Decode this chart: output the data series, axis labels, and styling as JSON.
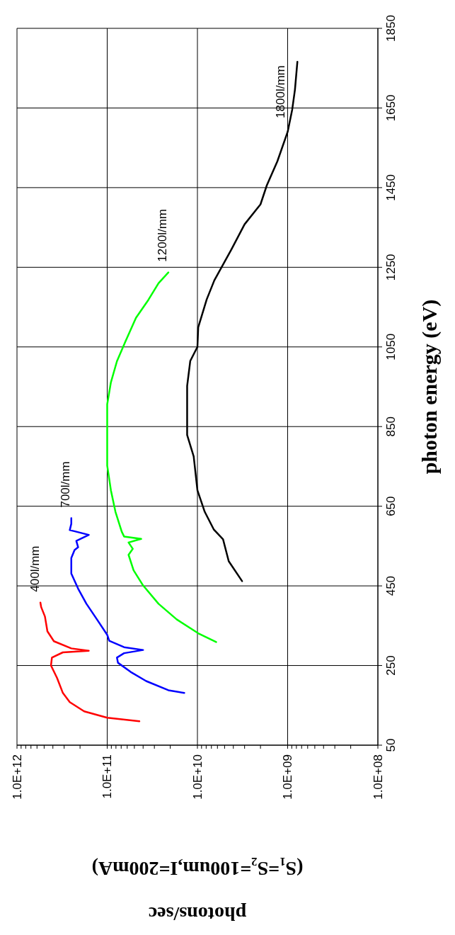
{
  "chart_data": {
    "type": "line",
    "xlabel": "photons/sec\n(S₁=S₂=100um,I=200mA)",
    "ylabel": "photon energy (eV)",
    "log": "x",
    "grid": true,
    "marker": "none",
    "line_style": "solid",
    "ylim": [
      50,
      1850
    ],
    "yticks": [
      50,
      250,
      450,
      650,
      850,
      1050,
      1250,
      1450,
      1650,
      1850
    ],
    "xlim": [
      1000000000000,
      100000000
    ],
    "xticks": [
      {
        "value": 100000000,
        "label": "1.0E+08"
      },
      {
        "value": 200000000,
        "label": null
      },
      {
        "value": 300000000,
        "label": null
      },
      {
        "value": 400000000,
        "label": null
      },
      {
        "value": 500000000,
        "label": null
      },
      {
        "value": 600000000,
        "label": null
      },
      {
        "value": 700000000,
        "label": null
      },
      {
        "value": 800000000,
        "label": null
      },
      {
        "value": 900000000,
        "label": null
      },
      {
        "value": 1000000000,
        "label": "1.0E+09"
      },
      {
        "value": 2000000000,
        "label": null
      },
      {
        "value": 3000000000,
        "label": null
      },
      {
        "value": 4000000000,
        "label": null
      },
      {
        "value": 5000000000,
        "label": null
      },
      {
        "value": 6000000000,
        "label": null
      },
      {
        "value": 7000000000,
        "label": null
      },
      {
        "value": 8000000000,
        "label": null
      },
      {
        "value": 9000000000,
        "label": null
      },
      {
        "value": 10000000000,
        "label": "1.0E+10"
      },
      {
        "value": 20000000000,
        "label": null
      },
      {
        "value": 30000000000,
        "label": null
      },
      {
        "value": 40000000000,
        "label": null
      },
      {
        "value": 50000000000,
        "label": null
      },
      {
        "value": 60000000000,
        "label": null
      },
      {
        "value": 70000000000,
        "label": null
      },
      {
        "value": 80000000000,
        "label": null
      },
      {
        "value": 90000000000,
        "label": null
      },
      {
        "value": 100000000000,
        "label": "1.0E+11"
      },
      {
        "value": 200000000000,
        "label": null
      },
      {
        "value": 300000000000,
        "label": null
      },
      {
        "value": 400000000000,
        "label": null
      },
      {
        "value": 500000000000,
        "label": null
      },
      {
        "value": 600000000000,
        "label": null
      },
      {
        "value": 700000000000,
        "label": null
      },
      {
        "value": 800000000000,
        "label": null
      },
      {
        "value": 900000000000,
        "label": null
      },
      {
        "value": 1000000000000,
        "label": "1.0E+12"
      }
    ],
    "series": [
      {
        "name": "400l/mm",
        "color": "#ff0000",
        "values": [
          110,
          119,
          135,
          158,
          181,
          219,
          250,
          270,
          283,
          287,
          293,
          311,
          336,
          373,
          397,
          408
        ],
        "x": [
          44000000000.0,
          100000000000.0,
          180000000000.0,
          260000000000.0,
          310000000000.0,
          360000000000.0,
          420000000000.0,
          410000000000.0,
          310000000000.0,
          160000000000.0,
          250000000000.0,
          390000000000.0,
          460000000000.0,
          490000000000.0,
          540000000000.0,
          550000000000.0
        ]
      },
      {
        "name": "700l/mm",
        "color": "#0000ff",
        "values": [
          181,
          188,
          211,
          234,
          257,
          270,
          281,
          289,
          296,
          312,
          327,
          366,
          405,
          443,
          481,
          520,
          540,
          547,
          563,
          578,
          586,
          590,
          606,
          620
        ],
        "x": [
          14000000000.0,
          21000000000.0,
          37000000000.0,
          55000000000.0,
          76000000000.0,
          78000000000.0,
          65000000000.0,
          40000000000.0,
          65000000000.0,
          95000000000.0,
          100000000000.0,
          130000000000.0,
          170000000000.0,
          210000000000.0,
          250000000000.0,
          250000000000.0,
          230000000000.0,
          210000000000.0,
          220000000000.0,
          160000000000.0,
          220000000000.0,
          260000000000.0,
          250000000000.0,
          250000000000.0
        ]
      },
      {
        "name": "1200l/mm",
        "color": "#00ff00",
        "values": [
          309,
          331,
          366,
          405,
          451,
          489,
          528,
          543,
          559,
          568,
          574,
          586,
          636,
          690,
          752,
          851,
          906,
          961,
          1014,
          1063,
          1123,
          1168,
          1210,
          1237
        ],
        "x": [
          6200000000.0,
          9800000000.0,
          17000000000.0,
          27000000000.0,
          40000000000.0,
          51000000000.0,
          58000000000.0,
          52000000000.0,
          58000000000.0,
          42000000000.0,
          65000000000.0,
          69000000000.0,
          81000000000.0,
          91000000000.0,
          100000000000.0,
          100000000000.0,
          100000000000.0,
          91000000000.0,
          78000000000.0,
          63000000000.0,
          48000000000.0,
          35000000000.0,
          27000000000.0,
          21000000000.0
        ]
      },
      {
        "name": "1800l/mm",
        "color": "#000000",
        "values": [
          462,
          512,
          567,
          592,
          636,
          690,
          775,
          829,
          875,
          952,
          1015,
          1050,
          1099,
          1169,
          1217,
          1295,
          1358,
          1408,
          1456,
          1516,
          1590,
          1646,
          1696,
          1766
        ],
        "x": [
          3200000000.0,
          4500000000.0,
          5200000000.0,
          6600000000.0,
          8300000000.0,
          10000000000.0,
          11000000000.0,
          13000000000.0,
          13000000000.0,
          13000000000.0,
          12000000000.0,
          10000000000.0,
          9800000000.0,
          7900000000.0,
          6500000000.0,
          4200000000.0,
          3000000000.0,
          2000000000.0,
          1700000000.0,
          1300000000.0,
          1000000000.0,
          890000000.0,
          830000000.0,
          780000000.0
        ]
      }
    ]
  }
}
